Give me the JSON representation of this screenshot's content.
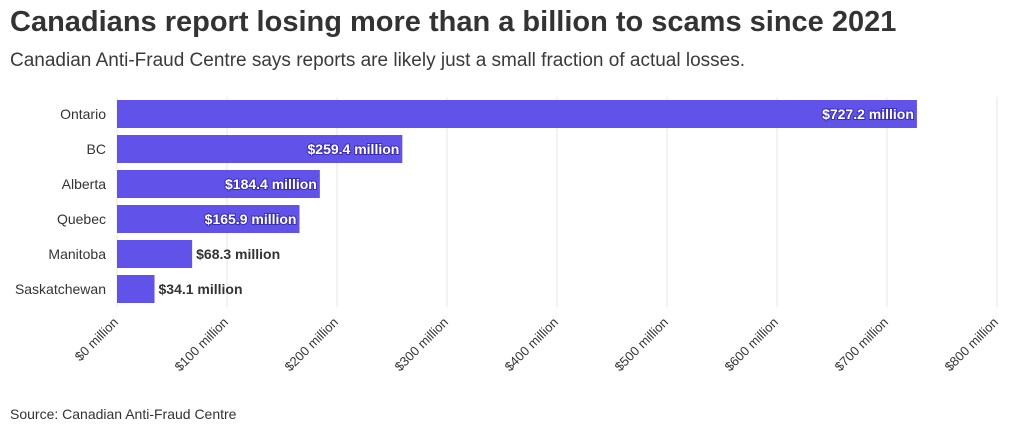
{
  "title": "Canadians report losing more than a billion to scams since 2021",
  "subtitle": "Canadian Anti-Fraud Centre says reports are likely just a small fraction of actual losses.",
  "source": "Source: Canadian Anti-Fraud Centre",
  "colors": {
    "bar": "#6152ea",
    "grid": "#e6e6e6",
    "label_dark": "#333333",
    "label_light": "#ffffff"
  },
  "chart_data": {
    "type": "bar",
    "orientation": "horizontal",
    "categories": [
      "Ontario",
      "BC",
      "Alberta",
      "Quebec",
      "Manitoba",
      "Saskatchewan"
    ],
    "values": [
      727.2,
      259.4,
      184.4,
      165.9,
      68.3,
      34.1
    ],
    "data_labels": [
      "$727.2 million",
      "$259.4 million",
      "$184.4 million",
      "$165.9 million",
      "$68.3 million",
      "$34.1 million"
    ],
    "xlim": [
      0,
      800
    ],
    "xticks": [
      0,
      100,
      200,
      300,
      400,
      500,
      600,
      700,
      800
    ],
    "xtick_labels": [
      "$0 million",
      "$100 million",
      "$200 million",
      "$300 million",
      "$400 million",
      "$500 million",
      "$600 million",
      "$700 million",
      "$800 million"
    ],
    "grid": true,
    "legend": "none"
  }
}
